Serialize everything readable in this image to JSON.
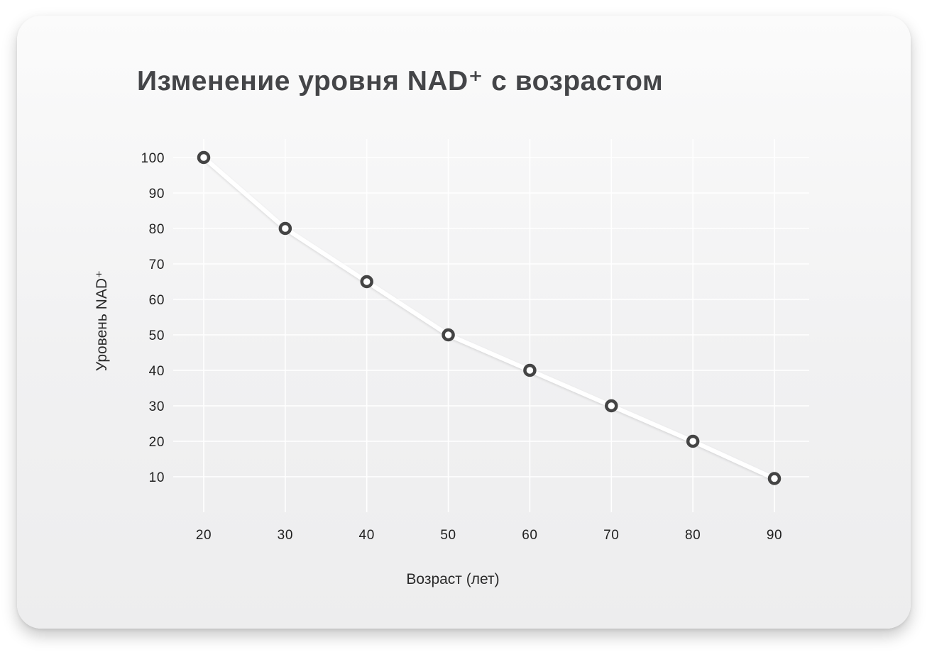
{
  "chart_data": {
    "type": "line",
    "title": "Изменение уровня NAD⁺ с возрастом",
    "xlabel": "Возраст (лет)",
    "ylabel": "Уровень NAD⁺",
    "x": [
      20,
      30,
      40,
      50,
      60,
      70,
      80,
      90
    ],
    "series": [
      {
        "values": [
          100,
          80,
          65,
          50,
          40,
          30,
          20,
          9.5
        ]
      }
    ],
    "x_ticks": [
      "20",
      "30",
      "40",
      "50",
      "60",
      "70",
      "80",
      "90"
    ],
    "y_ticks": [
      "10",
      "20",
      "30",
      "40",
      "50",
      "60",
      "70",
      "80",
      "90",
      "100"
    ],
    "xlim": [
      20,
      90
    ],
    "ylim": [
      10,
      100
    ],
    "grid": true,
    "legend": "none",
    "colors": {
      "marker": "#444444",
      "marker_fill": "#ffffff",
      "line": "#ffffff",
      "grid": "#ffffff",
      "title": "#444548"
    }
  }
}
